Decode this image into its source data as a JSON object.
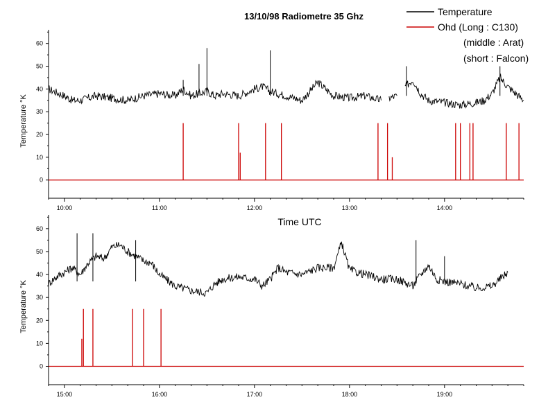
{
  "chart_data": [
    {
      "type": "line",
      "title": "13/10/98 Radiometre 35 Ghz",
      "ylabel": "Temperature °K",
      "xlabel": "",
      "xlim": [
        "09:50",
        "14:50"
      ],
      "ylim": [
        -8,
        66
      ],
      "x_ticks": [
        "10:00",
        "11:00",
        "12:00",
        "13:00",
        "14:00"
      ],
      "y_ticks": [
        0,
        10,
        20,
        30,
        40,
        50,
        60
      ],
      "legend": [
        "Temperature",
        "Ohd (Long : C130)",
        "(middle : Arat)",
        "(short : Falcon)"
      ],
      "series": [
        {
          "name": "Temperature",
          "color": "#000000",
          "points": [
            [
              "09:50",
              40
            ],
            [
              "10:00",
              37
            ],
            [
              "10:05",
              35
            ],
            [
              "10:10",
              35
            ],
            [
              "10:20",
              37
            ],
            [
              "10:30",
              36
            ],
            [
              "10:40",
              35
            ],
            [
              "10:50",
              37
            ],
            [
              "11:00",
              38
            ],
            [
              "11:10",
              37
            ],
            [
              "11:15",
              40
            ],
            [
              "11:20",
              37
            ],
            [
              "11:30",
              39
            ],
            [
              "11:35",
              37
            ],
            [
              "11:40",
              38
            ],
            [
              "11:50",
              37
            ],
            [
              "12:00",
              40
            ],
            [
              "12:05",
              41
            ],
            [
              "12:10",
              39
            ],
            [
              "12:20",
              37
            ],
            [
              "12:30",
              35
            ],
            [
              "12:40",
              43
            ],
            [
              "12:45",
              40
            ],
            [
              "12:50",
              37
            ],
            [
              "13:00",
              36
            ],
            [
              "13:10",
              37
            ],
            [
              "13:20",
              35
            ],
            null,
            [
              "13:25",
              36
            ],
            [
              "13:30",
              37
            ],
            null,
            [
              "13:35",
              41
            ],
            [
              "13:40",
              44
            ],
            [
              "13:45",
              38
            ],
            [
              "13:50",
              35
            ],
            [
              "14:00",
              34
            ],
            [
              "14:10",
              33
            ],
            [
              "14:20",
              34
            ],
            [
              "14:25",
              35
            ],
            [
              "14:30",
              38
            ],
            [
              "14:35",
              45
            ],
            [
              "14:40",
              41
            ],
            [
              "14:45",
              38
            ],
            [
              "14:50",
              35
            ]
          ],
          "spikes": [
            [
              "11:15",
              44
            ],
            [
              "11:25",
              51
            ],
            [
              "11:30",
              58
            ],
            [
              "12:10",
              57
            ],
            [
              "13:36",
              50
            ],
            [
              "14:35",
              50
            ]
          ]
        },
        {
          "name": "Ohd",
          "color": "#cc0000",
          "baseline": 0,
          "bars": [
            [
              "11:15",
              25
            ],
            [
              "11:50",
              25
            ],
            [
              "11:51",
              12
            ],
            [
              "12:07",
              25
            ],
            [
              "12:17",
              25
            ],
            [
              "13:18",
              25
            ],
            [
              "13:24",
              25
            ],
            [
              "13:27",
              10
            ],
            [
              "13:67",
              25
            ],
            [
              "13:76",
              25
            ],
            [
              "14:10",
              25
            ],
            [
              "14:18",
              25
            ],
            [
              "14:39",
              25
            ],
            [
              "14:47",
              25
            ]
          ]
        }
      ]
    },
    {
      "type": "line",
      "title": "",
      "ylabel": "Temperature °K",
      "xlabel": "Time UTC",
      "xlim": [
        "14:50",
        "19:50"
      ],
      "ylim": [
        -8,
        66
      ],
      "x_ticks": [
        "15:00",
        "16:00",
        "17:00",
        "18:00",
        "19:00"
      ],
      "y_ticks": [
        0,
        10,
        20,
        30,
        40,
        50,
        60
      ],
      "series": [
        {
          "name": "Temperature",
          "color": "#000000",
          "points": [
            [
              "14:50",
              36
            ],
            [
              "14:55",
              39
            ],
            [
              "15:00",
              41
            ],
            [
              "15:05",
              43
            ],
            [
              "15:10",
              40
            ],
            [
              "15:15",
              45
            ],
            [
              "15:20",
              48
            ],
            [
              "15:25",
              47
            ],
            [
              "15:30",
              52
            ],
            [
              "15:35",
              53
            ],
            [
              "15:40",
              50
            ],
            [
              "15:45",
              48
            ],
            [
              "15:50",
              46
            ],
            [
              "15:55",
              45
            ],
            [
              "16:00",
              40
            ],
            [
              "16:10",
              35
            ],
            [
              "16:20",
              33
            ],
            [
              "16:30",
              32
            ],
            [
              "16:35",
              36
            ],
            [
              "16:40",
              38
            ],
            [
              "16:50",
              39
            ],
            [
              "17:00",
              38
            ],
            [
              "17:05",
              35
            ],
            [
              "17:10",
              38
            ],
            [
              "17:15",
              43
            ],
            [
              "17:20",
              41
            ],
            [
              "17:30",
              40
            ],
            [
              "17:40",
              43
            ],
            [
              "17:50",
              43
            ],
            [
              "17:55",
              54
            ],
            [
              "18:00",
              42
            ],
            [
              "18:10",
              40
            ],
            [
              "18:20",
              38
            ],
            [
              "18:30",
              38
            ],
            [
              "18:40",
              35
            ],
            [
              "18:45",
              40
            ],
            [
              "18:50",
              44
            ],
            [
              "18:55",
              38
            ],
            [
              "19:00",
              37
            ],
            [
              "19:10",
              36
            ],
            [
              "19:20",
              34
            ],
            [
              "19:30",
              35
            ],
            [
              "19:35",
              38
            ],
            [
              "19:40",
              41
            ]
          ],
          "spikes": [
            [
              "15:08",
              58
            ],
            [
              "15:18",
              58
            ],
            [
              "15:45",
              55
            ],
            [
              "18:42",
              55
            ],
            [
              "19:00",
              48
            ]
          ]
        },
        {
          "name": "Ohd",
          "color": "#cc0000",
          "baseline": 0,
          "bars": [
            [
              "15:11",
              12
            ],
            [
              "15:12",
              25
            ],
            [
              "15:18",
              25
            ],
            [
              "15:43",
              25
            ],
            [
              "15:50",
              25
            ],
            [
              "16:01",
              25
            ]
          ]
        }
      ]
    }
  ]
}
